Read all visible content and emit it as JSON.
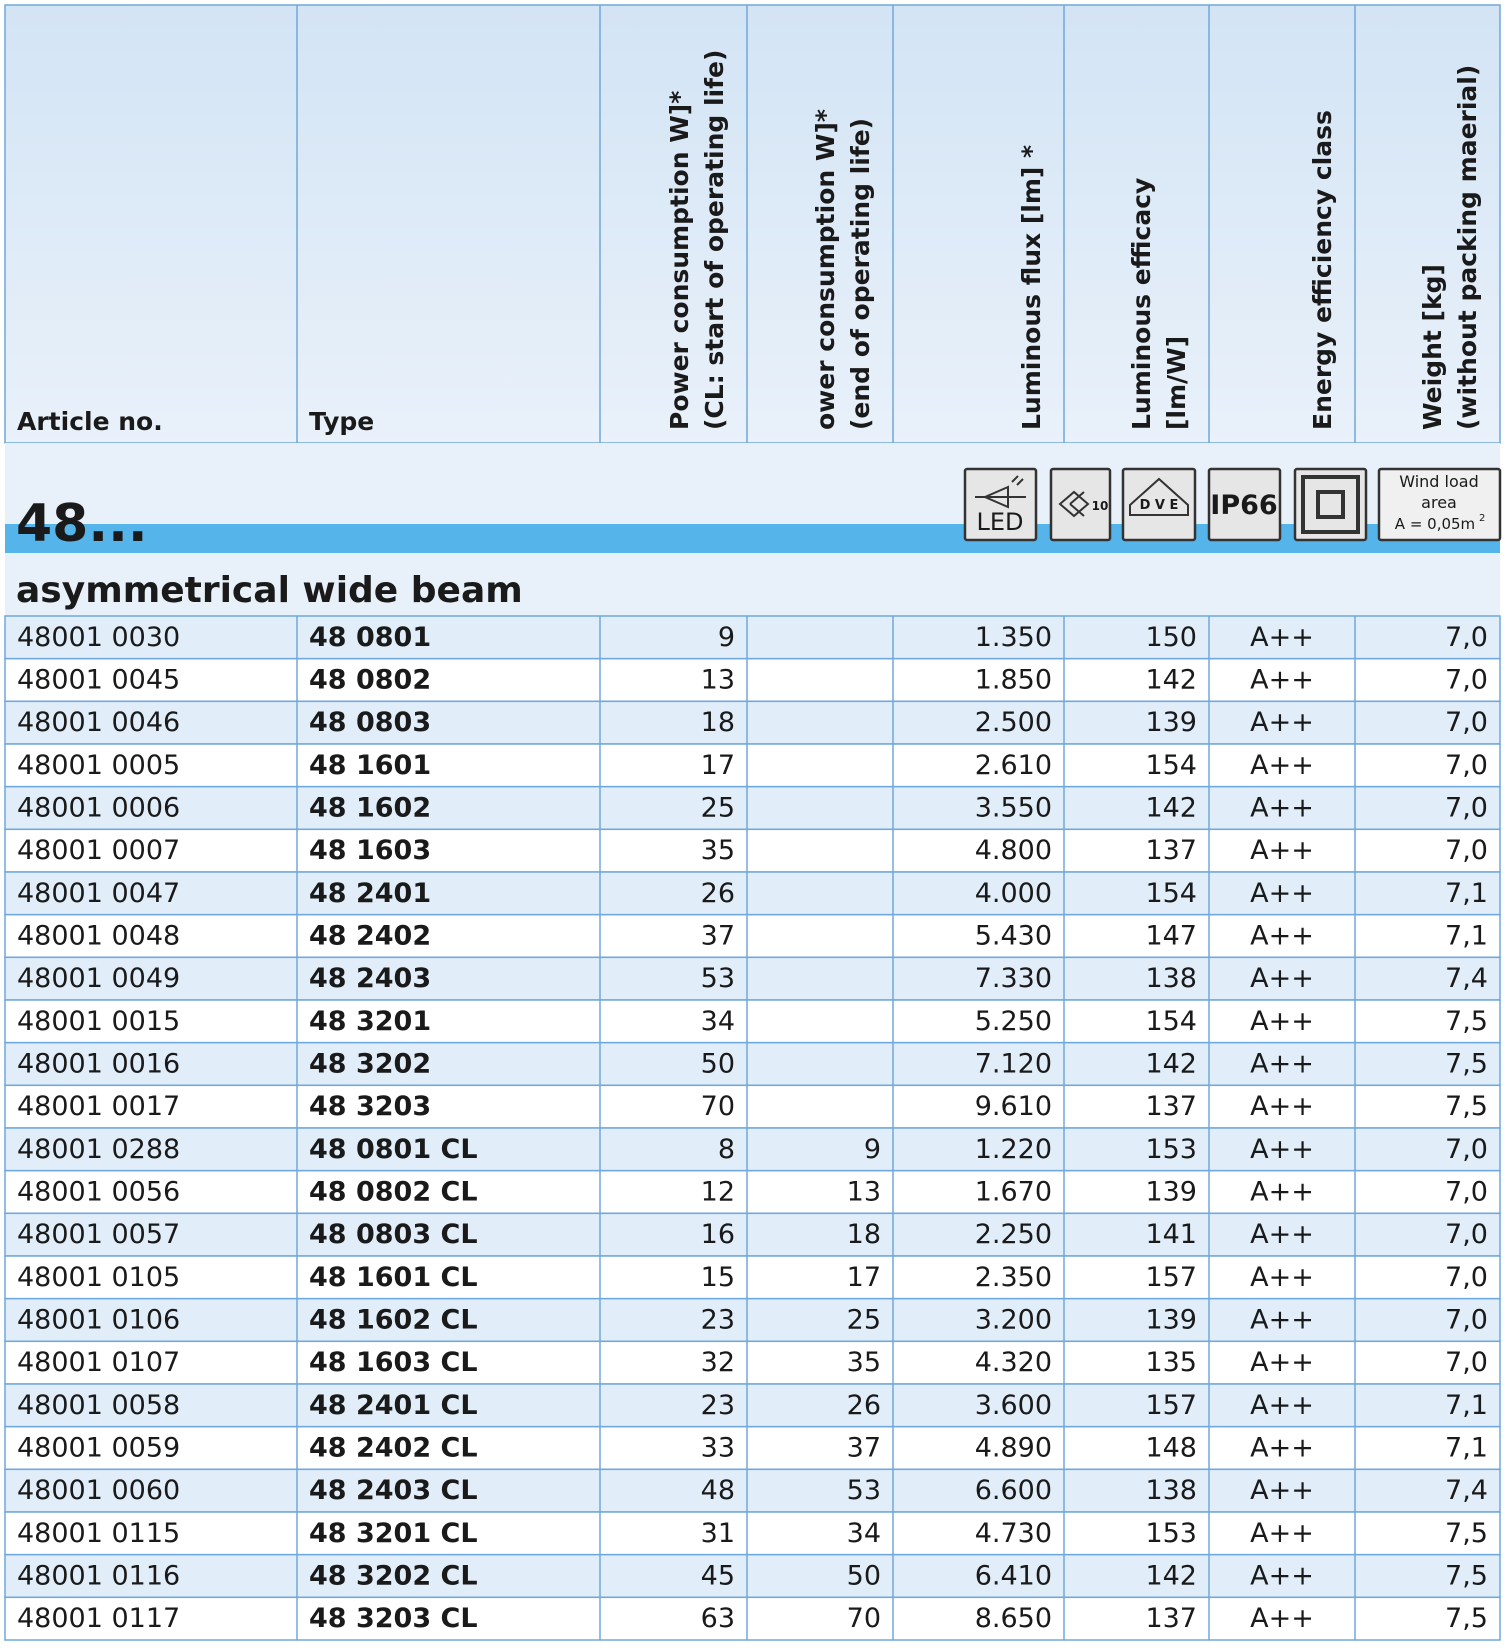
{
  "header": {
    "columns": [
      [
        "Article no."
      ],
      [
        "Type"
      ],
      [
        "Power consumption W]*",
        "(CL: start of operating life)"
      ],
      [
        "ower consumption W]*",
        "(end of operating life)"
      ],
      [
        "Luminous flux [lm] *"
      ],
      [
        "Luminous efficacy",
        "[lm/W]"
      ],
      [
        "Energy efficiency class"
      ],
      [
        "Weight [kg]",
        "(without packing maerial)"
      ]
    ]
  },
  "section": {
    "title": "48...",
    "subtitle": "asymmetrical wide beam",
    "icons": {
      "led": "LED",
      "class": "10",
      "vde": "D V E",
      "ip": "IP66",
      "wind": [
        "Wind load",
        "area",
        "A = 0,05m"
      ],
      "wind_exponent": "2"
    }
  },
  "table": {
    "rows": [
      [
        "48001 0030",
        "48 0801",
        "9",
        null,
        "1.350",
        "150",
        "A++",
        "7,0"
      ],
      [
        "48001 0045",
        "48 0802",
        "13",
        null,
        "1.850",
        "142",
        "A++",
        "7,0"
      ],
      [
        "48001 0046",
        "48 0803",
        "18",
        null,
        "2.500",
        "139",
        "A++",
        "7,0"
      ],
      [
        "48001 0005",
        "48 1601",
        "17",
        null,
        "2.610",
        "154",
        "A++",
        "7,0"
      ],
      [
        "48001 0006",
        "48 1602",
        "25",
        null,
        "3.550",
        "142",
        "A++",
        "7,0"
      ],
      [
        "48001 0007",
        "48 1603",
        "35",
        null,
        "4.800",
        "137",
        "A++",
        "7,0"
      ],
      [
        "48001 0047",
        "48 2401",
        "26",
        null,
        "4.000",
        "154",
        "A++",
        "7,1"
      ],
      [
        "48001 0048",
        "48 2402",
        "37",
        null,
        "5.430",
        "147",
        "A++",
        "7,1"
      ],
      [
        "48001 0049",
        "48 2403",
        "53",
        null,
        "7.330",
        "138",
        "A++",
        "7,4"
      ],
      [
        "48001 0015",
        "48 3201",
        "34",
        null,
        "5.250",
        "154",
        "A++",
        "7,5"
      ],
      [
        "48001 0016",
        "48 3202",
        "50",
        null,
        "7.120",
        "142",
        "A++",
        "7,5"
      ],
      [
        "48001 0017",
        "48 3203",
        "70",
        null,
        "9.610",
        "137",
        "A++",
        "7,5"
      ],
      [
        "48001 0288",
        "48 0801 CL",
        "8",
        "9",
        "1.220",
        "153",
        "A++",
        "7,0"
      ],
      [
        "48001 0056",
        "48 0802 CL",
        "12",
        "13",
        "1.670",
        "139",
        "A++",
        "7,0"
      ],
      [
        "48001 0057",
        "48 0803 CL",
        "16",
        "18",
        "2.250",
        "141",
        "A++",
        "7,0"
      ],
      [
        "48001 0105",
        "48 1601 CL",
        "15",
        "17",
        "2.350",
        "157",
        "A++",
        "7,0"
      ],
      [
        "48001 0106",
        "48 1602 CL",
        "23",
        "25",
        "3.200",
        "139",
        "A++",
        "7,0"
      ],
      [
        "48001 0107",
        "48 1603 CL",
        "32",
        "35",
        "4.320",
        "135",
        "A++",
        "7,0"
      ],
      [
        "48001 0058",
        "48 2401 CL",
        "23",
        "26",
        "3.600",
        "157",
        "A++",
        "7,1"
      ],
      [
        "48001 0059",
        "48 2402 CL",
        "33",
        "37",
        "4.890",
        "148",
        "A++",
        "7,1"
      ],
      [
        "48001 0060",
        "48 2403 CL",
        "48",
        "53",
        "6.600",
        "138",
        "A++",
        "7,4"
      ],
      [
        "48001 0115",
        "48 3201 CL",
        "31",
        "34",
        "4.730",
        "153",
        "A++",
        "7,5"
      ],
      [
        "48001 0116",
        "48 3202 CL",
        "45",
        "50",
        "6.410",
        "142",
        "A++",
        "7,5"
      ],
      [
        "48001 0117",
        "48 3203 CL",
        "63",
        "70",
        "8.650",
        "137",
        "A++",
        "7,5"
      ]
    ]
  }
}
